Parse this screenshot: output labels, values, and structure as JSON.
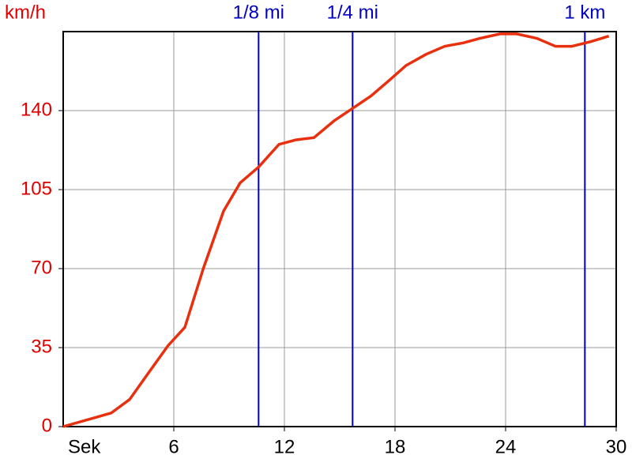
{
  "chart_data": {
    "type": "line",
    "x_label": "Sek",
    "y_label": "km/h",
    "xlim": [
      0,
      30
    ],
    "ylim": [
      0,
      175
    ],
    "xticks": [
      6,
      12,
      18,
      24,
      30
    ],
    "yticks": [
      0,
      35,
      70,
      105,
      140
    ],
    "grid": true,
    "grid_color": "#999999",
    "axis_label_color": "#dd0000",
    "x": [
      0,
      2.6,
      3.6,
      4.6,
      5.7,
      6.6,
      7.6,
      8.7,
      9.6,
      10.6,
      11.7,
      12.6,
      13.6,
      14.7,
      15.7,
      16.7,
      17.7,
      18.6,
      19.7,
      20.7,
      21.7,
      22.6,
      23.7,
      24.6,
      25.7,
      26.7,
      27.6,
      28.6,
      29.6
    ],
    "series": [
      {
        "name": "km/h",
        "color": "#e8300f",
        "values": [
          0,
          6,
          12,
          23.5,
          36,
          44,
          70,
          95.5,
          108,
          115,
          125,
          127,
          128,
          135.5,
          141,
          146.5,
          153.5,
          160,
          165,
          168.5,
          170,
          172,
          174,
          174,
          172,
          168.5,
          168.5,
          170.5,
          173
        ]
      }
    ],
    "markers": [
      {
        "label": "1/8 mi",
        "x": 10.6
      },
      {
        "label": "1/4 mi",
        "x": 15.7
      },
      {
        "label": "1 km",
        "x": 28.3
      }
    ],
    "marker_color": "#0000c0"
  }
}
